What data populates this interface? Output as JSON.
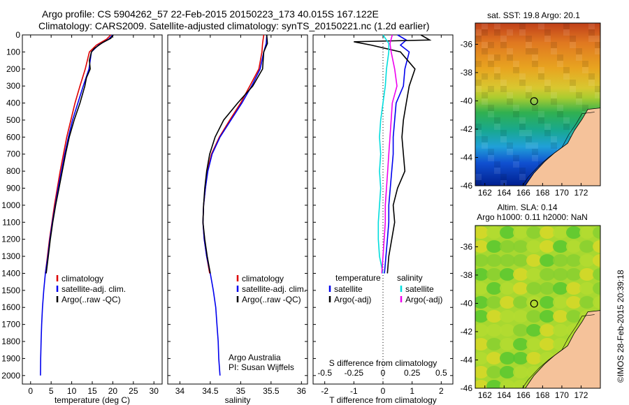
{
  "header": {
    "line1": "Argo profile: CS 5904262_57 22-Feb-2015 20150223_173 40.015S 167.122E",
    "line2": "Climatology: CARS2009. Satellite-adjusted climatology: synTS_20150221.nc (1.2d earlier)"
  },
  "colors": {
    "climatology": "#dd0000",
    "satellite": "#0000ee",
    "argo": "#000000",
    "salinity_satellite": "#00dddd",
    "salinity_argo": "#ee00ee",
    "land": "#f5c29a"
  },
  "chart_data": [
    {
      "type": "line",
      "name": "temperature-profile",
      "xlabel": "temperature (deg C)",
      "ylabel": "",
      "xlim": [
        -2,
        32
      ],
      "ylim": [
        2050,
        0
      ],
      "xticks": [
        "0",
        "5",
        "10",
        "15",
        "20",
        "25",
        "30"
      ],
      "xtick_values": [
        0,
        5,
        10,
        15,
        20,
        25,
        30
      ],
      "yticks": [
        "0",
        "100",
        "200",
        "300",
        "400",
        "500",
        "600",
        "700",
        "800",
        "900",
        "1000",
        "1100",
        "1200",
        "1300",
        "1400",
        "1500",
        "1600",
        "1700",
        "1800",
        "1900",
        "2000"
      ],
      "ytick_values": [
        0,
        100,
        200,
        300,
        400,
        500,
        600,
        700,
        800,
        900,
        1000,
        1100,
        1200,
        1300,
        1400,
        1500,
        1600,
        1700,
        1800,
        1900,
        2000
      ],
      "legend": [
        "climatology",
        "satellite-adj. clim.",
        "Argo(..raw -QC)"
      ],
      "legend_position": "lower-center",
      "series": [
        {
          "name": "climatology",
          "color": "#dd0000",
          "points": [
            [
              19.5,
              0
            ],
            [
              18.5,
              25
            ],
            [
              16,
              60
            ],
            [
              14.3,
              100
            ],
            [
              13.3,
              200
            ],
            [
              12,
              300
            ],
            [
              10.8,
              400
            ],
            [
              9.8,
              500
            ],
            [
              8.8,
              600
            ],
            [
              8,
              700
            ],
            [
              7.2,
              800
            ],
            [
              6.5,
              900
            ],
            [
              5.8,
              1000
            ],
            [
              5.2,
              1100
            ],
            [
              4.6,
              1200
            ],
            [
              4.1,
              1300
            ],
            [
              3.6,
              1400
            ]
          ]
        },
        {
          "name": "satellite-adj. clim.",
          "color": "#0000ee",
          "points": [
            [
              20,
              0
            ],
            [
              19,
              25
            ],
            [
              16.5,
              60
            ],
            [
              14.8,
              100
            ],
            [
              14.2,
              200
            ],
            [
              12.8,
              300
            ],
            [
              11.5,
              400
            ],
            [
              10.2,
              500
            ],
            [
              9.2,
              600
            ],
            [
              8.3,
              700
            ],
            [
              7.5,
              800
            ],
            [
              6.7,
              900
            ],
            [
              6,
              1000
            ],
            [
              5.3,
              1100
            ],
            [
              4.7,
              1200
            ],
            [
              4.2,
              1300
            ],
            [
              3.6,
              1400
            ],
            [
              3.2,
              1500
            ],
            [
              2.9,
              1600
            ],
            [
              2.7,
              1700
            ],
            [
              2.55,
              1800
            ],
            [
              2.45,
              1900
            ],
            [
              2.4,
              2000
            ]
          ]
        },
        {
          "name": "Argo(..raw -QC)",
          "color": "#000000",
          "points": [
            [
              20.1,
              0
            ],
            [
              19.5,
              20
            ],
            [
              17.5,
              45
            ],
            [
              15.5,
              80
            ],
            [
              14.8,
              100
            ],
            [
              14.3,
              150
            ],
            [
              14.5,
              200
            ],
            [
              13.6,
              250
            ],
            [
              13.2,
              300
            ],
            [
              12,
              400
            ],
            [
              10.6,
              500
            ],
            [
              9.4,
              600
            ],
            [
              8.5,
              700
            ],
            [
              7.7,
              800
            ],
            [
              6.9,
              900
            ],
            [
              6.1,
              1000
            ],
            [
              5.4,
              1100
            ],
            [
              4.8,
              1200
            ],
            [
              4.3,
              1300
            ],
            [
              3.8,
              1400
            ]
          ]
        }
      ]
    },
    {
      "type": "line",
      "name": "salinity-profile",
      "xlabel": "salinity",
      "ylabel": "",
      "xlim": [
        33.8,
        36.1
      ],
      "ylim": [
        2050,
        0
      ],
      "xticks": [
        "34",
        "34.5",
        "35",
        "35.5",
        "36"
      ],
      "xtick_values": [
        34,
        34.5,
        35,
        35.5,
        36
      ],
      "legend": [
        "climatology",
        "satellite-adj. clim.",
        "Argo(..raw -QC)"
      ],
      "legend_position": "lower-right",
      "annotation": [
        "Argo Australia",
        "PI: Susan Wijffels"
      ],
      "series": [
        {
          "name": "climatology",
          "color": "#dd0000",
          "points": [
            [
              35.38,
              0
            ],
            [
              35.36,
              50
            ],
            [
              35.35,
              100
            ],
            [
              35.3,
              200
            ],
            [
              35.15,
              300
            ],
            [
              35.0,
              400
            ],
            [
              34.82,
              500
            ],
            [
              34.65,
              600
            ],
            [
              34.52,
              700
            ],
            [
              34.45,
              800
            ],
            [
              34.42,
              900
            ],
            [
              34.39,
              1000
            ],
            [
              34.38,
              1100
            ],
            [
              34.4,
              1200
            ],
            [
              34.44,
              1300
            ],
            [
              34.49,
              1400
            ]
          ]
        },
        {
          "name": "satellite-adj. clim.",
          "color": "#0000ee",
          "points": [
            [
              35.43,
              0
            ],
            [
              35.42,
              50
            ],
            [
              35.38,
              100
            ],
            [
              35.32,
              200
            ],
            [
              35.18,
              300
            ],
            [
              35.02,
              400
            ],
            [
              34.84,
              500
            ],
            [
              34.66,
              600
            ],
            [
              34.53,
              700
            ],
            [
              34.46,
              800
            ],
            [
              34.42,
              900
            ],
            [
              34.39,
              1000
            ],
            [
              34.38,
              1100
            ],
            [
              34.4,
              1200
            ],
            [
              34.44,
              1300
            ],
            [
              34.5,
              1400
            ],
            [
              34.55,
              1500
            ],
            [
              34.59,
              1600
            ],
            [
              34.61,
              1700
            ],
            [
              34.63,
              1800
            ],
            [
              34.64,
              1900
            ],
            [
              34.66,
              2000
            ]
          ]
        },
        {
          "name": "Argo(..raw -QC)",
          "color": "#000000",
          "points": [
            [
              35.43,
              0
            ],
            [
              35.44,
              50
            ],
            [
              35.38,
              100
            ],
            [
              35.36,
              200
            ],
            [
              35.2,
              300
            ],
            [
              34.95,
              400
            ],
            [
              34.72,
              500
            ],
            [
              34.58,
              600
            ],
            [
              34.49,
              700
            ],
            [
              34.44,
              800
            ],
            [
              34.41,
              900
            ],
            [
              34.39,
              1000
            ],
            [
              34.38,
              1100
            ],
            [
              34.41,
              1200
            ],
            [
              34.45,
              1300
            ],
            [
              34.5,
              1400
            ]
          ]
        }
      ]
    },
    {
      "type": "line",
      "name": "difference-profile",
      "xlabel": "T difference from climatology",
      "xlabel_top": "S difference from climatology",
      "xlim": [
        -2.4,
        2.4
      ],
      "ylim": [
        2050,
        0
      ],
      "xticks": [
        "-2",
        "-1",
        "0",
        "1",
        "2"
      ],
      "xtick_values": [
        -2,
        -1,
        0,
        1,
        2
      ],
      "top_ticks": [
        "-0.5",
        "-0.25",
        "0",
        "0.25",
        "0.5"
      ],
      "top_tick_values": [
        -0.5,
        -0.25,
        0,
        0.25,
        0.5
      ],
      "legend_groups": {
        "temperature": [
          "satellite",
          "Argo(-adj)"
        ],
        "salinity": [
          "satellite",
          "Argo(-adj)"
        ]
      },
      "legend_headings": [
        "temperature",
        "salinity"
      ],
      "zero_line": "dotted",
      "series": [
        {
          "name": "T satellite",
          "color": "#0000ee",
          "points": [
            [
              0.5,
              0
            ],
            [
              0.8,
              30
            ],
            [
              0.6,
              60
            ],
            [
              0.9,
              100
            ],
            [
              0.75,
              200
            ],
            [
              0.7,
              300
            ],
            [
              0.45,
              400
            ],
            [
              0.4,
              500
            ],
            [
              0.35,
              600
            ],
            [
              0.35,
              700
            ],
            [
              0.3,
              800
            ],
            [
              0.25,
              900
            ],
            [
              0.2,
              1000
            ],
            [
              0.2,
              1100
            ],
            [
              0.15,
              1200
            ],
            [
              0.1,
              1300
            ],
            [
              0.05,
              1400
            ]
          ]
        },
        {
          "name": "T Argo(-adj)",
          "color": "#000000",
          "points": [
            [
              1.3,
              0
            ],
            [
              1.6,
              30
            ],
            [
              -1.0,
              40
            ],
            [
              -0.4,
              60
            ],
            [
              0.6,
              100
            ],
            [
              1.1,
              200
            ],
            [
              0.9,
              300
            ],
            [
              0.8,
              400
            ],
            [
              0.7,
              500
            ],
            [
              0.65,
              600
            ],
            [
              0.7,
              700
            ],
            [
              0.75,
              800
            ],
            [
              0.5,
              900
            ],
            [
              0.35,
              1000
            ],
            [
              0.4,
              1100
            ],
            [
              0.3,
              1200
            ],
            [
              0.2,
              1300
            ],
            [
              0.15,
              1400
            ]
          ]
        },
        {
          "name": "S satellite",
          "color": "#00dddd",
          "points": [
            [
              0.0,
              0
            ],
            [
              0.05,
              50
            ],
            [
              0.05,
              100
            ],
            [
              0.03,
              200
            ],
            [
              0.02,
              300
            ],
            [
              0.0,
              400
            ],
            [
              -0.02,
              500
            ],
            [
              -0.03,
              600
            ],
            [
              -0.02,
              700
            ],
            [
              -0.03,
              800
            ],
            [
              -0.02,
              900
            ],
            [
              -0.03,
              1000
            ],
            [
              -0.04,
              1100
            ],
            [
              -0.04,
              1200
            ],
            [
              -0.03,
              1300
            ],
            [
              0.0,
              1400
            ]
          ]
        },
        {
          "name": "S Argo(-adj)",
          "color": "#ee00ee",
          "points": [
            [
              0.08,
              0
            ],
            [
              0.06,
              50
            ],
            [
              0.07,
              100
            ],
            [
              0.1,
              200
            ],
            [
              0.12,
              300
            ],
            [
              0.08,
              400
            ],
            [
              0.07,
              500
            ],
            [
              0.06,
              600
            ],
            [
              0.05,
              700
            ],
            [
              0.04,
              800
            ],
            [
              0.03,
              900
            ],
            [
              0.02,
              1000
            ],
            [
              0.02,
              1100
            ],
            [
              0.01,
              1200
            ],
            [
              0.0,
              1300
            ],
            [
              -0.01,
              1400
            ]
          ]
        }
      ]
    },
    {
      "type": "heatmap",
      "name": "sst-map",
      "title": "sat. SST: 19.8 Argo: 20.1",
      "xlim": [
        161,
        174
      ],
      "ylim": [
        -46,
        -34.5
      ],
      "xticks": [
        "162",
        "164",
        "166",
        "168",
        "170",
        "172"
      ],
      "yticks": [
        "-36",
        "-38",
        "-40",
        "-42",
        "-44",
        "-46"
      ],
      "argo_position": {
        "lon": 167.12,
        "lat": -40.02
      },
      "coast": [
        [
          174,
          -40.5
        ],
        [
          172.7,
          -40.6
        ],
        [
          172.1,
          -41.3
        ],
        [
          171.3,
          -42.1
        ],
        [
          170.6,
          -43.0
        ],
        [
          169.2,
          -43.7
        ],
        [
          168.2,
          -44.3
        ],
        [
          167.1,
          -45.1
        ],
        [
          166.4,
          -45.8
        ],
        [
          166.2,
          -46
        ]
      ]
    },
    {
      "type": "heatmap",
      "name": "sla-map",
      "title": "Altim. SLA: 0.14",
      "subtitle": "Argo h1000: 0.11 h2000: NaN",
      "xlim": [
        161,
        174
      ],
      "ylim": [
        -46,
        -34.5
      ],
      "xticks": [
        "162",
        "164",
        "166",
        "168",
        "170",
        "172"
      ],
      "yticks": [
        "-36",
        "-38",
        "-40",
        "-42",
        "-44",
        "-46"
      ],
      "argo_position": {
        "lon": 167.12,
        "lat": -40.02
      }
    }
  ],
  "footer": {
    "stamp": "©IMOS 28-Feb-2015 20:39:18"
  }
}
